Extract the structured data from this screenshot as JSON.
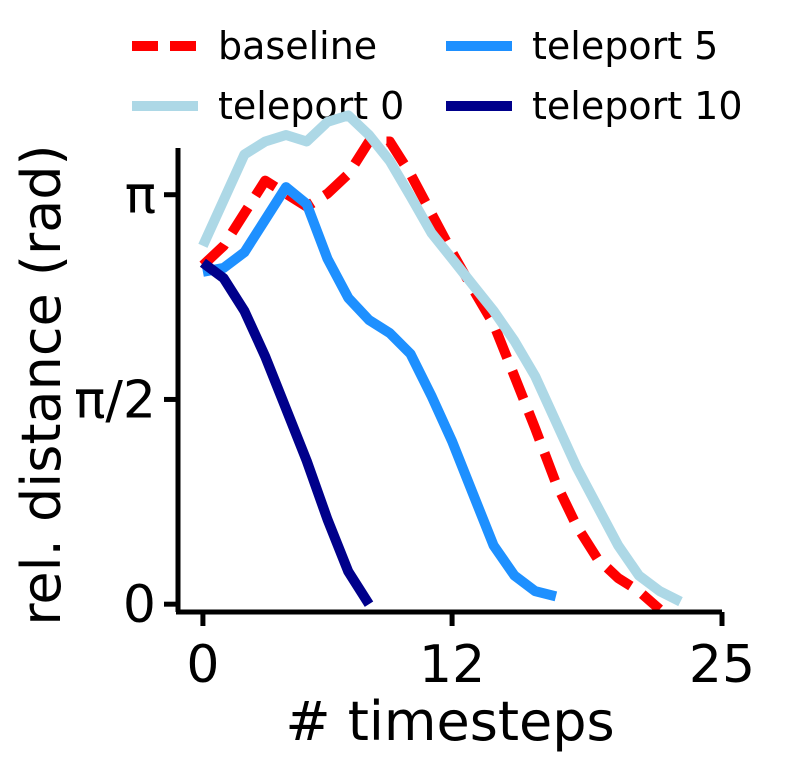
{
  "chart_data": {
    "type": "line",
    "title": "",
    "xlabel": "# timesteps",
    "ylabel": "rel. distance (rad)",
    "xlim": [
      -1.2,
      25
    ],
    "ylim": [
      -0.06,
      3.5
    ],
    "xticks": [
      {
        "value": 0,
        "label": "0"
      },
      {
        "value": 12,
        "label": "12"
      },
      {
        "value": 25,
        "label": "25"
      }
    ],
    "yticks": [
      {
        "value": 0,
        "label": "0"
      },
      {
        "value": 1.5708,
        "label": "π/2"
      },
      {
        "value": 3.1416,
        "label": "π"
      }
    ],
    "grid": false,
    "legend": {
      "placement": "top",
      "columns": 2
    },
    "series": [
      {
        "name": "baseline",
        "color": "#ff0000",
        "style": "dashed",
        "x": [
          0,
          1,
          2,
          3,
          4,
          5,
          6,
          7,
          8,
          9,
          10,
          11,
          12,
          13,
          14,
          15,
          16,
          17,
          18,
          19,
          20,
          21,
          22
        ],
        "y": [
          2.6,
          2.75,
          3.0,
          3.25,
          3.15,
          3.05,
          3.15,
          3.3,
          3.55,
          3.55,
          3.3,
          3.0,
          2.7,
          2.42,
          2.15,
          1.75,
          1.35,
          0.93,
          0.6,
          0.35,
          0.2,
          0.1,
          -0.04
        ]
      },
      {
        "name": "teleport 0",
        "color": "#add8e6",
        "style": "solid",
        "x": [
          0,
          1,
          2,
          3,
          4,
          5,
          6,
          7,
          8,
          9,
          10,
          11,
          12,
          13,
          14,
          15,
          16,
          17,
          18,
          19,
          20,
          21,
          22,
          23
        ],
        "y": [
          2.75,
          3.1,
          3.45,
          3.55,
          3.6,
          3.55,
          3.7,
          3.75,
          3.6,
          3.4,
          3.13,
          2.85,
          2.65,
          2.45,
          2.25,
          2.02,
          1.75,
          1.4,
          1.05,
          0.75,
          0.45,
          0.22,
          0.1,
          0.02
        ]
      },
      {
        "name": "teleport 5",
        "color": "#1e90ff",
        "style": "solid",
        "x": [
          0,
          1,
          2,
          3,
          4,
          5,
          6,
          7,
          8,
          9,
          10,
          11,
          12,
          13,
          14,
          15,
          16,
          17
        ],
        "y": [
          2.55,
          2.58,
          2.7,
          2.95,
          3.2,
          3.07,
          2.65,
          2.35,
          2.18,
          2.08,
          1.92,
          1.6,
          1.25,
          0.85,
          0.45,
          0.22,
          0.1,
          0.06
        ]
      },
      {
        "name": "teleport 10",
        "color": "#00008b",
        "style": "solid",
        "x": [
          0,
          1,
          2,
          3,
          4,
          5,
          6,
          7,
          8
        ],
        "y": [
          2.62,
          2.5,
          2.25,
          1.9,
          1.5,
          1.1,
          0.65,
          0.25,
          0.0
        ]
      }
    ]
  }
}
